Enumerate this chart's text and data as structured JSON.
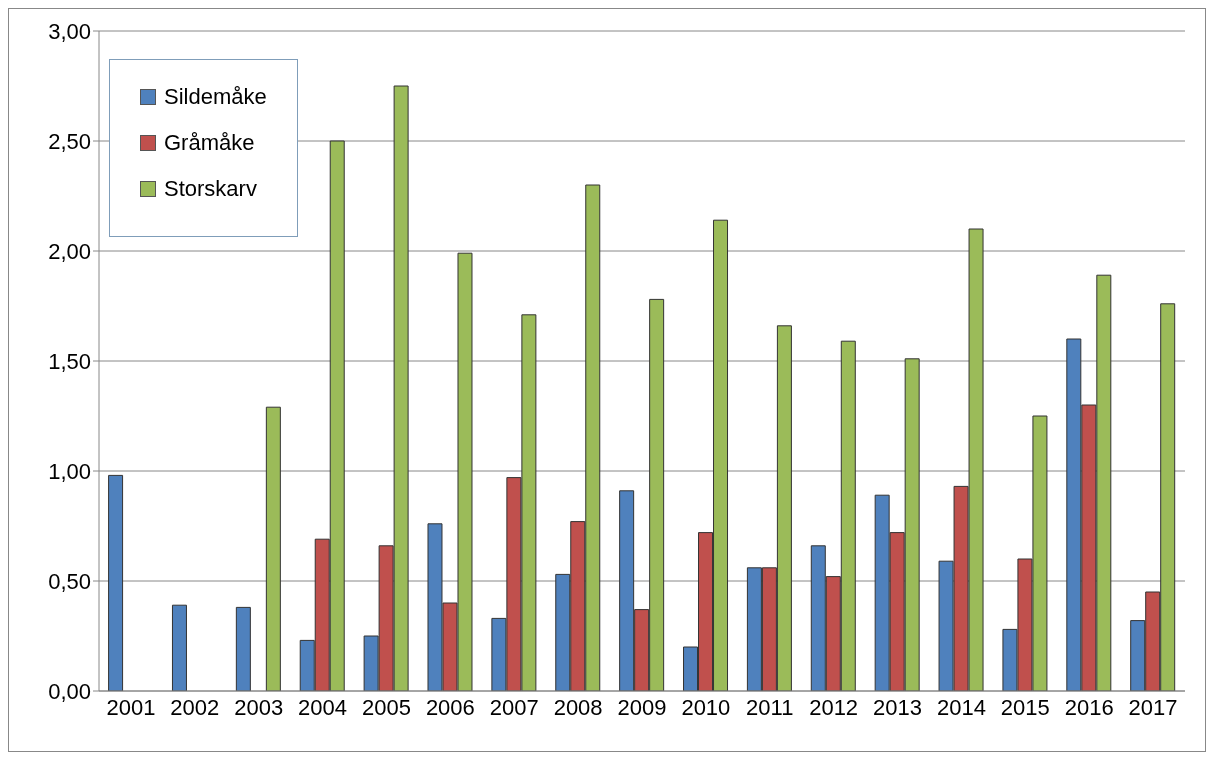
{
  "chart_data": {
    "type": "bar",
    "categories": [
      "2001",
      "2002",
      "2003",
      "2004",
      "2005",
      "2006",
      "2007",
      "2008",
      "2009",
      "2010",
      "2011",
      "2012",
      "2013",
      "2014",
      "2015",
      "2016",
      "2017"
    ],
    "series": [
      {
        "name": "Sildemåke",
        "color": "#4f81bd",
        "values": [
          0.98,
          0.39,
          0.38,
          0.23,
          0.25,
          0.76,
          0.33,
          0.53,
          0.91,
          0.2,
          0.56,
          0.66,
          0.89,
          0.59,
          0.28,
          1.6,
          0.32
        ]
      },
      {
        "name": "Gråmåke",
        "color": "#c0504d",
        "values": [
          null,
          null,
          null,
          0.69,
          0.66,
          0.4,
          0.97,
          0.77,
          0.37,
          0.72,
          0.56,
          0.52,
          0.72,
          0.93,
          0.6,
          1.3,
          0.45
        ]
      },
      {
        "name": "Storskarv",
        "color": "#9bbb59",
        "values": [
          null,
          null,
          1.29,
          2.5,
          2.75,
          1.99,
          1.71,
          2.3,
          1.78,
          2.14,
          1.66,
          1.59,
          1.51,
          2.1,
          1.25,
          1.89,
          1.76
        ]
      }
    ],
    "ylim": [
      0,
      3
    ],
    "yticks": [
      {
        "value": 0,
        "label": "0,00"
      },
      {
        "value": 0.5,
        "label": "0,50"
      },
      {
        "value": 1,
        "label": "1,00"
      },
      {
        "value": 1.5,
        "label": "1,50"
      },
      {
        "value": 2,
        "label": "2,00"
      },
      {
        "value": 2.5,
        "label": "2,50"
      },
      {
        "value": 3,
        "label": "3,00"
      }
    ],
    "grid": "y",
    "legend": "top left"
  }
}
